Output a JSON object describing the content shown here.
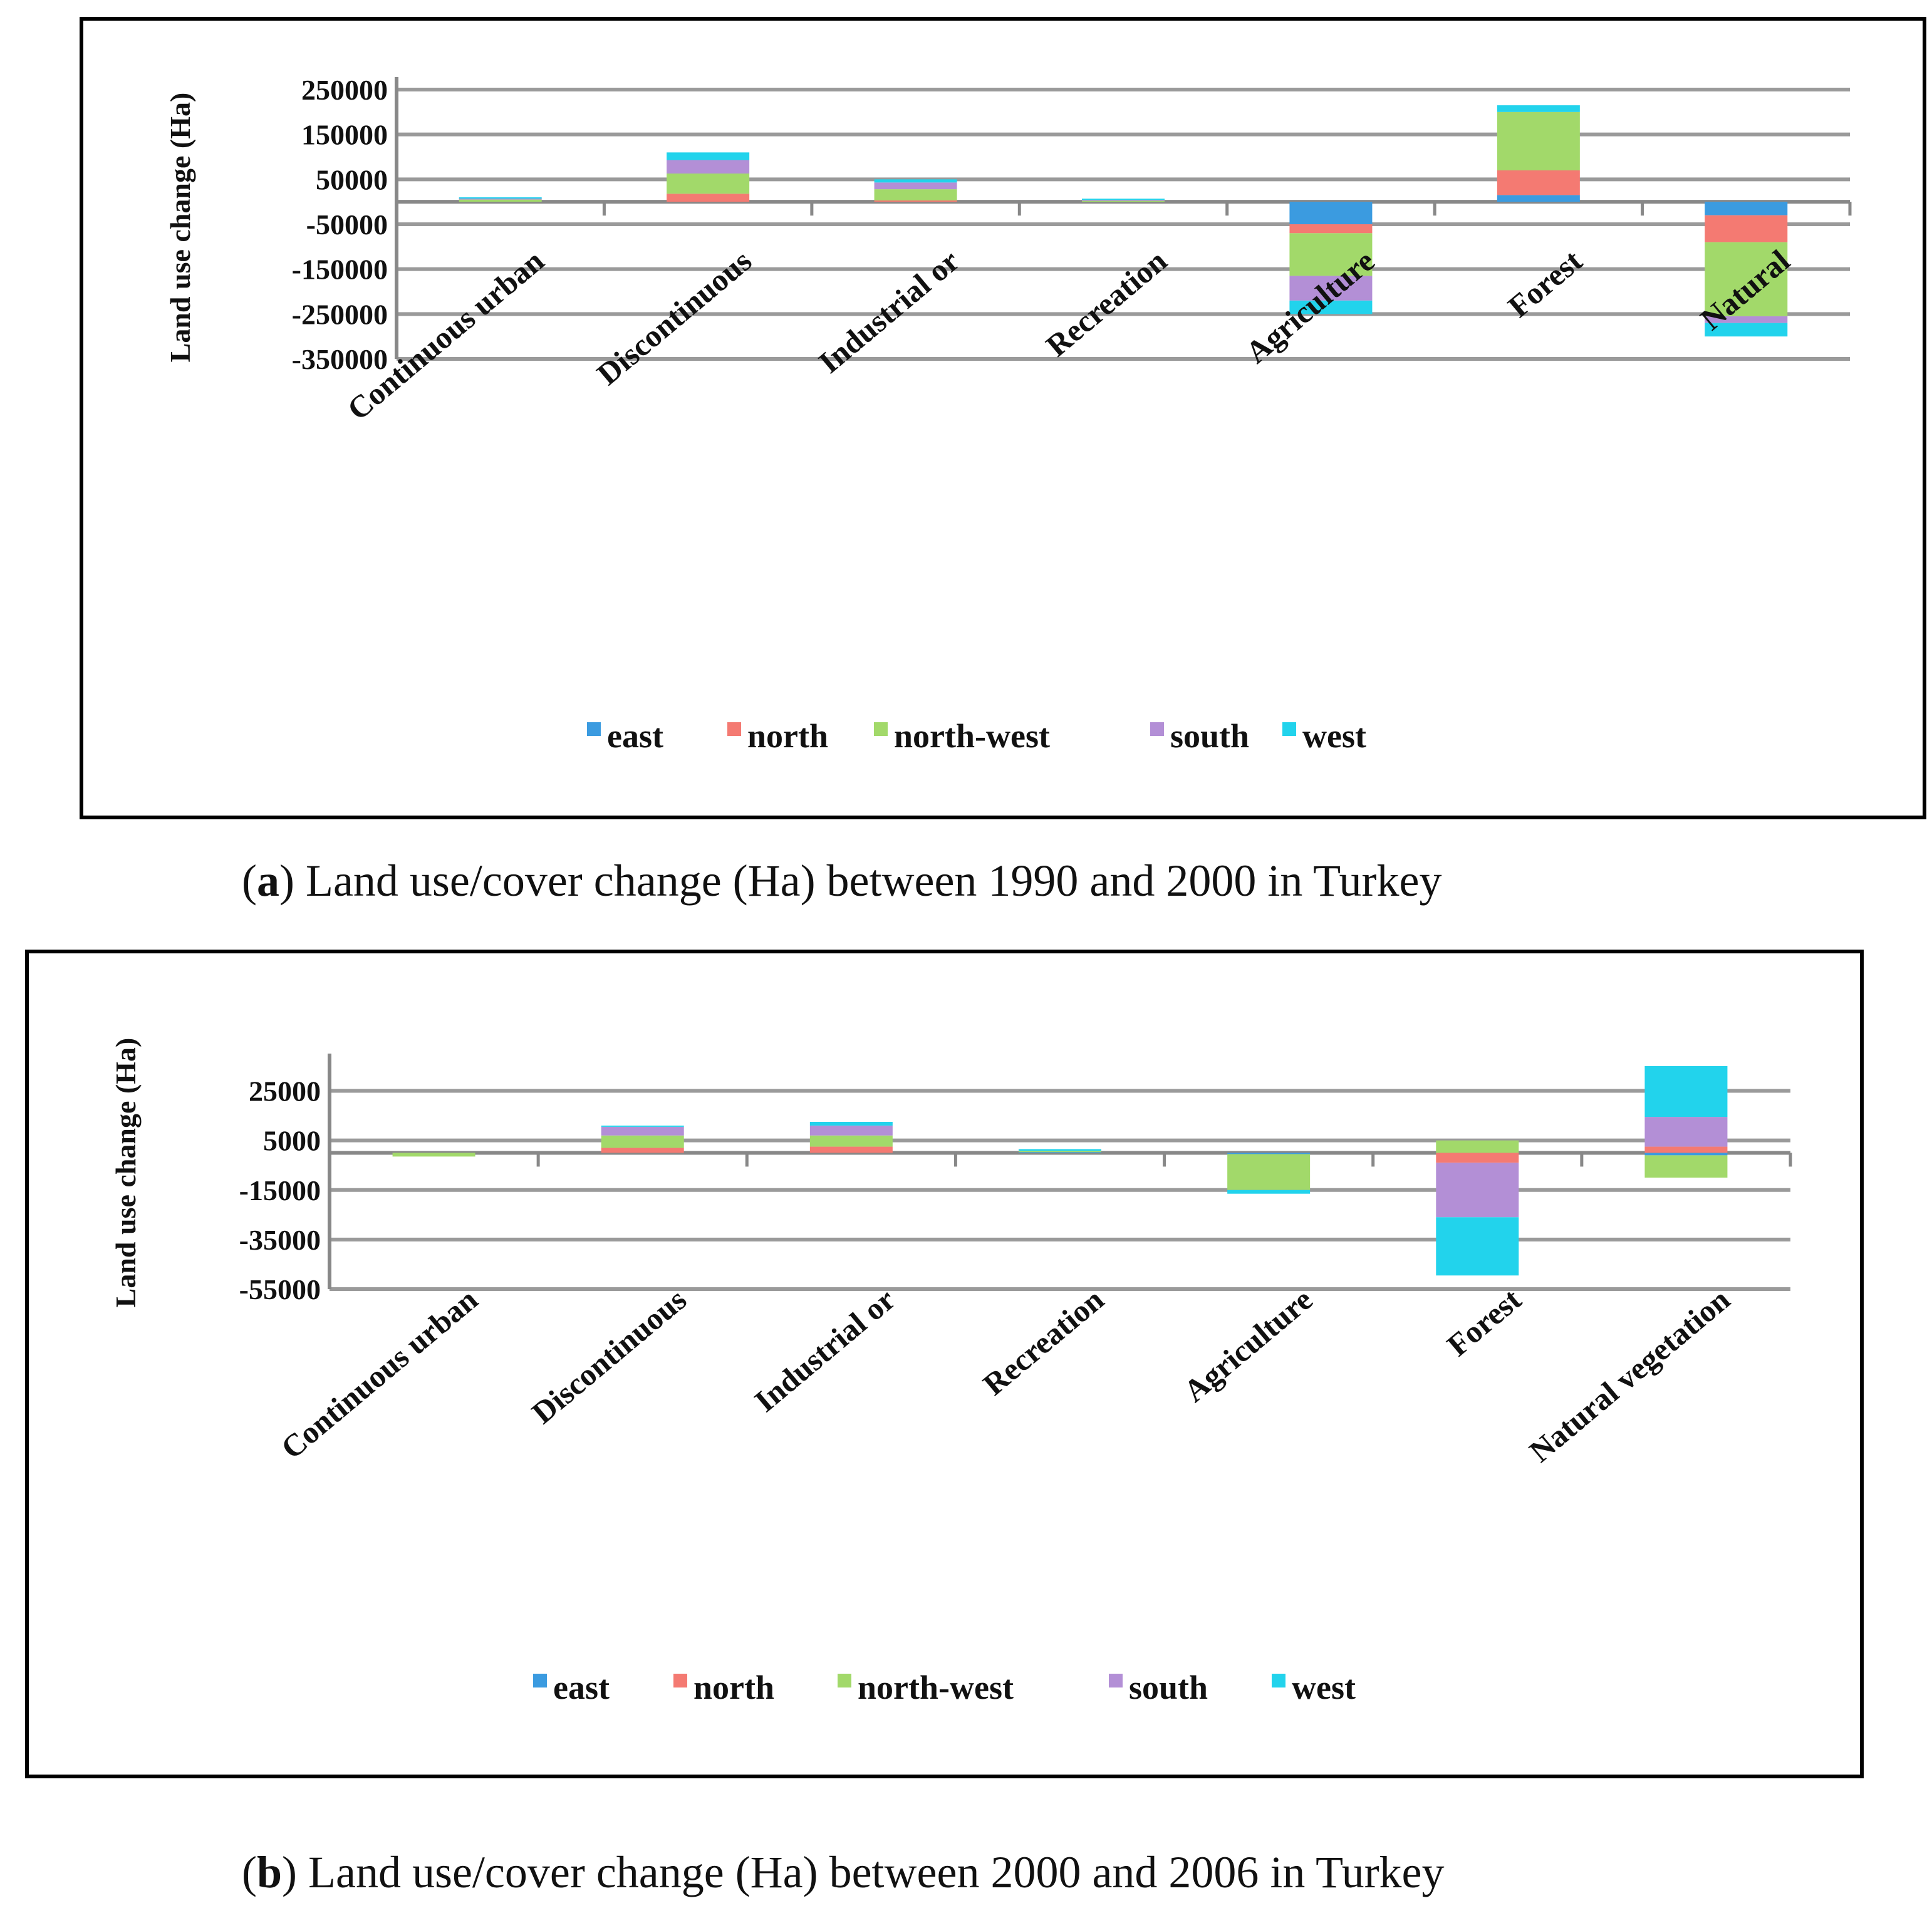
{
  "colors": {
    "east": "#3b9be0",
    "north": "#f47a72",
    "north-west": "#a2d96a",
    "south": "#b38fd6",
    "west": "#22d3ec",
    "grid": "#9a9a9a",
    "axis": "#888888"
  },
  "figures": [
    {
      "caption_label": "a",
      "caption_text": " Land use/cover change (Ha) between 1990 and 2000 in Turkey"
    },
    {
      "caption_label": "b",
      "caption_text": " Land use/cover change (Ha) between 2000 and 2006 in Turkey"
    }
  ],
  "chart_data": [
    {
      "type": "bar",
      "stacked": true,
      "title": "",
      "xlabel": "",
      "ylabel": "Land use change (Ha)",
      "ylim": [
        -350000,
        250000
      ],
      "yticks": [
        250000,
        150000,
        50000,
        -50000,
        -150000,
        -250000,
        -350000
      ],
      "ytick_labels": [
        "250000",
        "150000",
        "50000",
        "-50000",
        "-150000",
        "-250000",
        "-350000"
      ],
      "categories": [
        "Continuous urban",
        "Discontinuous",
        "Industrial or",
        "Recreation",
        "Agriculture",
        "Forest",
        "Natural"
      ],
      "series": [
        {
          "name": "east",
          "values": [
            0,
            0,
            0,
            0,
            -50000,
            15000,
            -30000
          ]
        },
        {
          "name": "north",
          "values": [
            0,
            18000,
            3000,
            0,
            -20000,
            55000,
            -60000
          ]
        },
        {
          "name": "north-west",
          "values": [
            5000,
            45000,
            25000,
            3000,
            -95000,
            130000,
            -165000
          ]
        },
        {
          "name": "south",
          "values": [
            3000,
            30000,
            15000,
            2000,
            -55000,
            0,
            -15000
          ]
        },
        {
          "name": "west",
          "values": [
            2000,
            17000,
            7000,
            2000,
            -30000,
            15000,
            -30000
          ]
        }
      ],
      "legend": [
        "east",
        "north",
        "north-west",
        "south",
        "west"
      ],
      "legend_position": "bottom",
      "grid": true
    },
    {
      "type": "bar",
      "stacked": true,
      "title": "",
      "xlabel": "",
      "ylabel": "Land use change (Ha)",
      "ylim": [
        -55000,
        35000
      ],
      "yticks": [
        25000,
        5000,
        -15000,
        -35000,
        -55000
      ],
      "ytick_labels": [
        "25000",
        "5000",
        "-15000",
        "-35000",
        "-55000"
      ],
      "categories": [
        "Continuous urban",
        "Discontinuous",
        "Industrial or",
        "Recreation",
        "Agriculture",
        "Forest",
        "Natural vegetation"
      ],
      "series": [
        {
          "name": "east",
          "values": [
            0,
            0,
            0,
            500,
            -500,
            0,
            -1000
          ]
        },
        {
          "name": "north",
          "values": [
            0,
            2000,
            2500,
            0,
            0,
            -4000,
            2500
          ]
        },
        {
          "name": "north-west",
          "values": [
            -1500,
            5000,
            4500,
            300,
            -14500,
            5000,
            -9000
          ]
        },
        {
          "name": "south",
          "values": [
            0,
            3500,
            4000,
            0,
            0,
            -22000,
            12000
          ]
        },
        {
          "name": "west",
          "values": [
            0,
            500,
            1500,
            700,
            -1500,
            -23500,
            20500
          ]
        }
      ],
      "legend": [
        "east",
        "north",
        "north-west",
        "south",
        "west"
      ],
      "legend_position": "bottom",
      "grid": true
    }
  ]
}
